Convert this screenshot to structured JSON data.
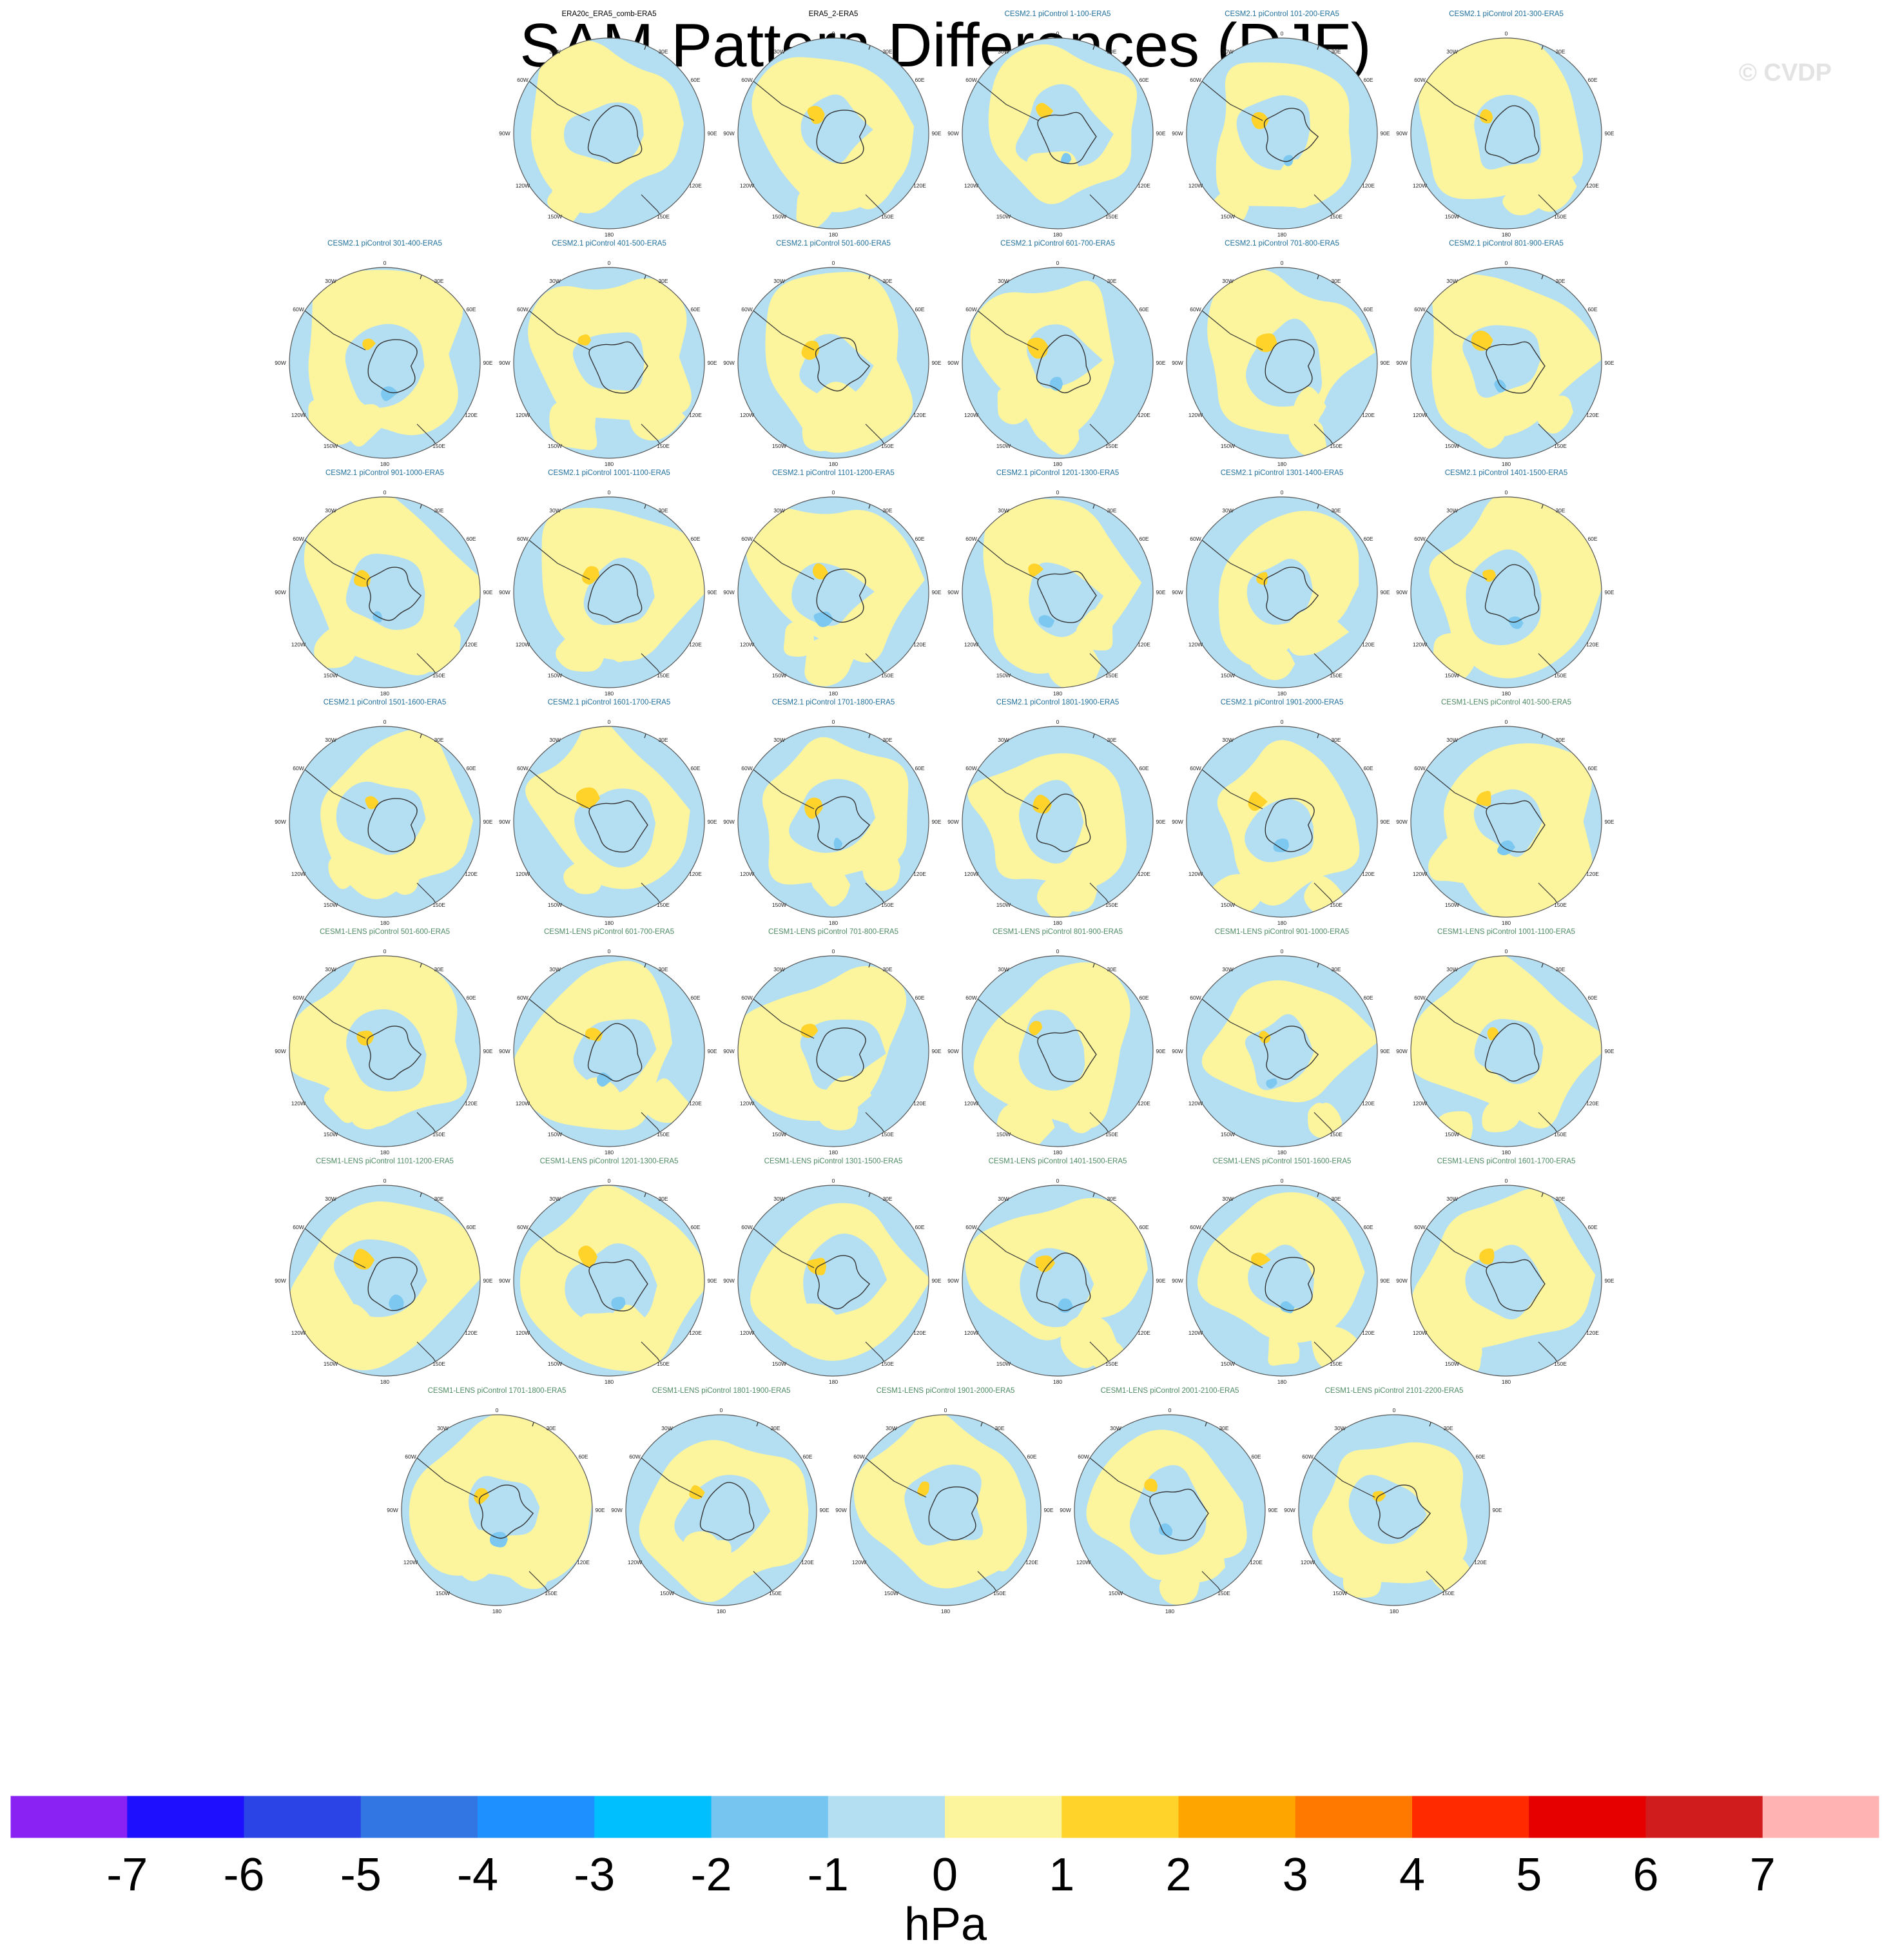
{
  "title": "SAM Pattern Differences (DJF)",
  "watermark": "© CVDP",
  "colors": {
    "light_blue": "#b4dff2",
    "blue_mid": "#7cc8f0",
    "yellow": "#fcf59e",
    "orange": "#ffd32a",
    "coast": "#333333",
    "title_obs": "#000000",
    "title_cesm2": "#1f6f9b",
    "title_cesm1": "#4e8a63"
  },
  "panel_tick_labels": {
    "lat_lines": "30W 0 30E 60E 90E 120E 150E 180 150W 120W 90W 60W",
    "top": "0",
    "bottom": "180",
    "left": "90W",
    "right": "90E",
    "tl": "30W",
    "tr": "30E",
    "ul": "60W",
    "ur": "60E",
    "ll": "120W",
    "lr": "120E",
    "bl": "150W",
    "br": "150E"
  },
  "panel_labels": [
    "ERA20c_ERA5_comb-ERA5",
    "ERA5_2-ERA5",
    "CESM2.1 piControl 1-100-ERA5",
    "CESM2.1 piControl 101-200-ERA5",
    "CESM2.1 piControl 201-300-ERA5",
    "CESM2.1 piControl 301-400-ERA5",
    "CESM2.1 piControl 401-500-ERA5",
    "CESM2.1 piControl 501-600-ERA5",
    "CESM2.1 piControl 601-700-ERA5",
    "CESM2.1 piControl 701-800-ERA5",
    "CESM2.1 piControl 801-900-ERA5",
    "CESM2.1 piControl 901-1000-ERA5",
    "CESM2.1 piControl 1001-1100-ERA5",
    "CESM2.1 piControl 1101-1200-ERA5",
    "CESM2.1 piControl 1201-1300-ERA5",
    "CESM2.1 piControl 1301-1400-ERA5",
    "CESM2.1 piControl 1401-1500-ERA5",
    "CESM2.1 piControl 1501-1600-ERA5",
    "CESM2.1 piControl 1601-1700-ERA5",
    "CESM2.1 piControl 1701-1800-ERA5",
    "CESM2.1 piControl 1801-1900-ERA5",
    "CESM2.1 piControl 1901-2000-ERA5",
    "CESM1-LENS piControl 401-500-ERA5",
    "CESM1-LENS piControl 501-600-ERA5",
    "CESM1-LENS piControl 601-700-ERA5",
    "CESM1-LENS piControl 701-800-ERA5",
    "CESM1-LENS piControl 801-900-ERA5",
    "CESM1-LENS piControl 901-1000-ERA5",
    "CESM1-LENS piControl 1001-1100-ERA5",
    "CESM1-LENS piControl 1101-1200-ERA5",
    "CESM1-LENS piControl 1201-1300-ERA5",
    "CESM1-LENS piControl 1301-1500-ERA5",
    "CESM1-LENS piControl 1401-1500-ERA5",
    "CESM1-LENS piControl 1501-1600-ERA5",
    "CESM1-LENS piControl 1601-1700-ERA5",
    "CESM1-LENS piControl 1701-1800-ERA5",
    "CESM1-LENS piControl 1801-1900-ERA5",
    "CESM1-LENS piControl 1901-2000-ERA5",
    "CESM1-LENS piControl 2001-2100-ERA5",
    "CESM1-LENS piControl 2101-2200-ERA5"
  ],
  "chart_data": {
    "type": "heatmap",
    "title": "SAM Pattern Differences (DJF)",
    "projection": "south polar stereographic",
    "colorbar": {
      "label": "hPa",
      "tick_labels": [
        "-7",
        "-6",
        "-5",
        "-4",
        "-3",
        "-2",
        "-1",
        "0",
        "1",
        "2",
        "3",
        "4",
        "5",
        "6",
        "7"
      ],
      "colors": [
        "#8a22f4",
        "#1e0fff",
        "#2a44e6",
        "#3276e4",
        "#1e90ff",
        "#00bfff",
        "#75c5f0",
        "#b4dff2",
        "#fcf59e",
        "#ffd32a",
        "#ffa500",
        "#ff7800",
        "#ff2a00",
        "#e60000",
        "#d01c1c",
        "#ffb3b3"
      ]
    }
  }
}
